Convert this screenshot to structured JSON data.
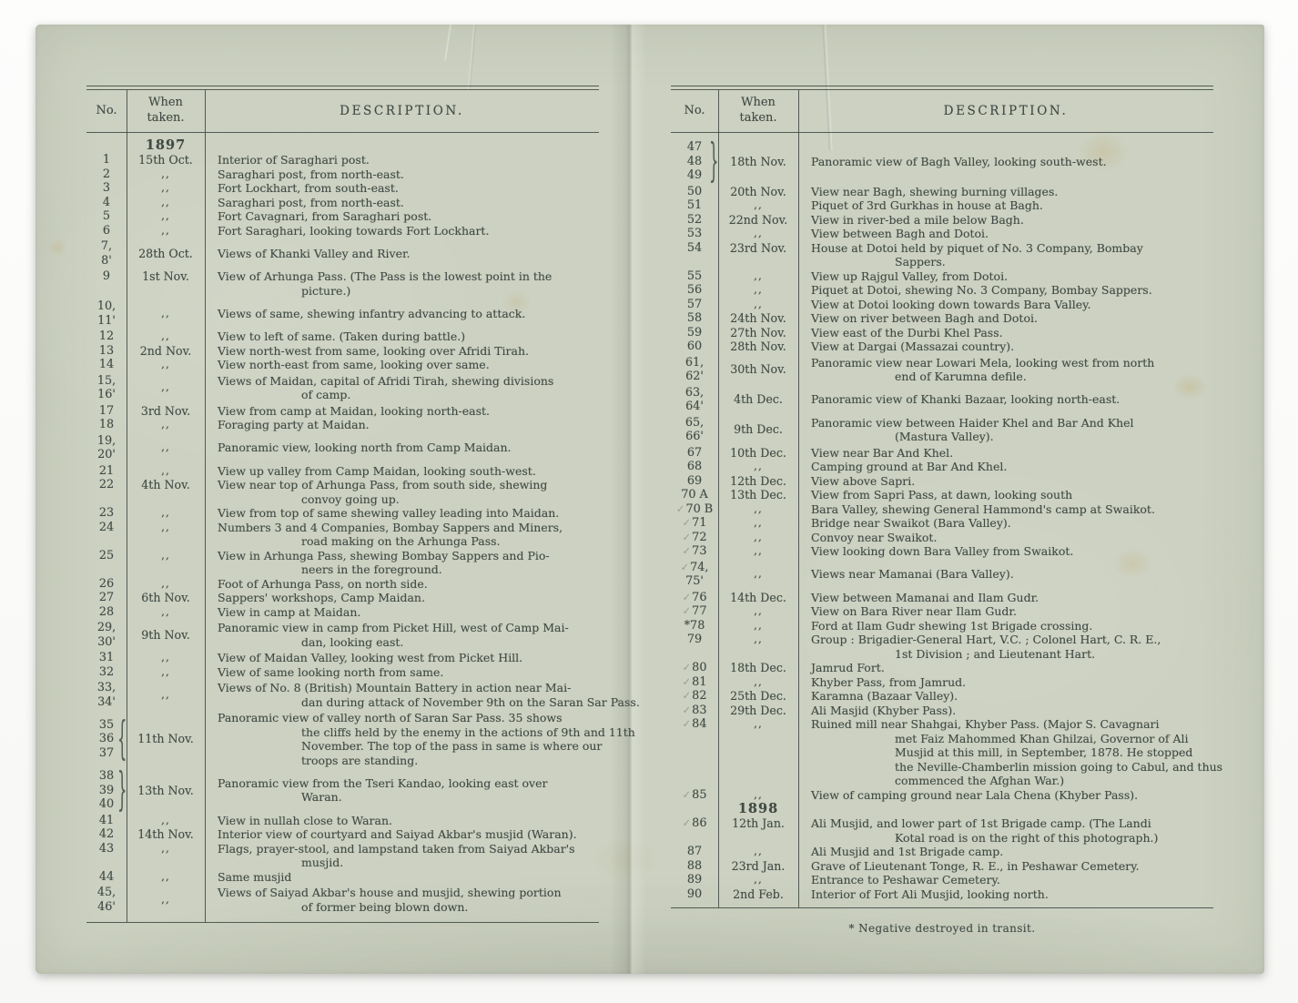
{
  "colors": {
    "paper": "#ccd1c1",
    "ink": "#414b45",
    "check_pencil": "#96a092"
  },
  "pages": [
    {
      "side": "left",
      "header": {
        "no": "No.",
        "when": "When\ntaken.",
        "desc": "DESCRIPTION."
      },
      "rows": [
        {
          "type": "year",
          "text": "1897"
        },
        {
          "no": [
            "1"
          ],
          "when": "15th Oct.",
          "desc": [
            "Interior of Saraghari post."
          ]
        },
        {
          "no": [
            "2"
          ],
          "when": ",,",
          "desc": [
            "Saraghari post, from north-east."
          ]
        },
        {
          "no": [
            "3"
          ],
          "when": ",,",
          "desc": [
            "Fort Lockhart, from south-east."
          ]
        },
        {
          "no": [
            "4"
          ],
          "when": ",,",
          "desc": [
            "Saraghari post, from north-east."
          ]
        },
        {
          "no": [
            "5"
          ],
          "when": ",,",
          "desc": [
            "Fort Cavagnari, from Saraghari post."
          ]
        },
        {
          "no": [
            "6"
          ],
          "when": ",,",
          "desc": [
            "Fort Saraghari, looking towards Fort Lockhart."
          ]
        },
        {
          "no": [
            "7,",
            "8'"
          ],
          "when": "28th Oct.",
          "desc": [
            "Views of Khanki Valley and River."
          ]
        },
        {
          "no": [
            "9"
          ],
          "when": "1st Nov.",
          "desc": [
            "View of Arhunga Pass.  (The Pass is the lowest point in the",
            "picture.)"
          ]
        },
        {
          "no": [
            "10,",
            "11'"
          ],
          "when": ",,",
          "desc": [
            "Views of same, shewing infantry advancing to attack."
          ]
        },
        {
          "no": [
            "12"
          ],
          "when": ",,",
          "desc": [
            "View to left of same.  (Taken during battle.)"
          ]
        },
        {
          "no": [
            "13"
          ],
          "when": "2nd Nov.",
          "desc": [
            "View north-west from same, looking over Afridi Tirah."
          ]
        },
        {
          "no": [
            "14"
          ],
          "when": ",,",
          "desc": [
            "View north-east from same, looking over same."
          ]
        },
        {
          "no": [
            "15,",
            "16'"
          ],
          "when": ",,",
          "desc": [
            "Views of Maidan, capital of Afridi Tirah, shewing divisions",
            "of camp."
          ]
        },
        {
          "no": [
            "17"
          ],
          "when": "3rd Nov.",
          "desc": [
            "View from camp at Maidan, looking north-east."
          ]
        },
        {
          "no": [
            "18"
          ],
          "when": ",,",
          "desc": [
            "Foraging party at Maidan."
          ]
        },
        {
          "no": [
            "19,",
            "20'"
          ],
          "when": ",,",
          "desc": [
            "Panoramic view, looking north from Camp Maidan."
          ]
        },
        {
          "no": [
            "21"
          ],
          "when": ",,",
          "desc": [
            "View up valley from Camp Maidan, looking south-west."
          ]
        },
        {
          "no": [
            "22"
          ],
          "when": "4th Nov.",
          "desc": [
            "View near top of Arhunga Pass, from south side, shewing",
            "convoy going up."
          ]
        },
        {
          "no": [
            "23"
          ],
          "when": ",,",
          "desc": [
            "View from top of same shewing valley leading into Maidan."
          ]
        },
        {
          "no": [
            "24"
          ],
          "when": ",,",
          "desc": [
            "Numbers 3 and 4 Companies, Bombay Sappers and Miners,",
            "road making on the Arhunga Pass."
          ]
        },
        {
          "no": [
            "25"
          ],
          "when": ",,",
          "desc": [
            "View in Arhunga Pass, shewing Bombay Sappers and Pio-",
            "neers in the foreground."
          ]
        },
        {
          "no": [
            "26"
          ],
          "when": ",,",
          "desc": [
            "Foot of Arhunga Pass, on north side."
          ]
        },
        {
          "no": [
            "27"
          ],
          "when": "6th Nov.",
          "desc": [
            "Sappers' workshops, Camp Maidan."
          ]
        },
        {
          "no": [
            "28"
          ],
          "when": ",,",
          "desc": [
            "View in camp at Maidan."
          ]
        },
        {
          "no": [
            "29,",
            "30'"
          ],
          "when": "9th Nov.",
          "desc": [
            "Panoramic view in camp from Picket Hill, west of Camp Mai-",
            "dan, looking east."
          ]
        },
        {
          "no": [
            "31"
          ],
          "when": ",,",
          "desc": [
            "View of Maidan Valley, looking west from Picket Hill."
          ]
        },
        {
          "no": [
            "32"
          ],
          "when": ",,",
          "desc": [
            "View of same looking north from same."
          ]
        },
        {
          "no": [
            "33,",
            "34'"
          ],
          "when": ",,",
          "desc": [
            "Views of No. 8 (British) Mountain Battery in action near Mai-",
            "dan during attack of November 9th on the Saran Sar Pass."
          ]
        },
        {
          "no": [
            "35",
            "36",
            "37"
          ],
          "brace": "{",
          "when": "11th Nov.",
          "desc": [
            "Panoramic view of valley north of Saran Sar Pass.  35 shows",
            "the cliffs held by the enemy in the actions of 9th and 11th",
            "November.  The top of the pass in same is where our",
            "troops are standing."
          ]
        },
        {
          "no": [
            "38",
            "39",
            "40"
          ],
          "brace": "}",
          "when": "13th Nov.",
          "desc": [
            "Panoramic view from the Tseri Kandao, looking east over",
            "Waran."
          ]
        },
        {
          "no": [
            "41"
          ],
          "when": ",,",
          "desc": [
            "View in nullah close to Waran."
          ]
        },
        {
          "no": [
            "42"
          ],
          "when": "14th Nov.",
          "desc": [
            "Interior view of courtyard and Saiyad Akbar's musjid (Waran)."
          ]
        },
        {
          "no": [
            "43"
          ],
          "when": ",,",
          "desc": [
            "Flags, prayer-stool, and lampstand taken from Saiyad Akbar's",
            "musjid."
          ]
        },
        {
          "no": [
            "44"
          ],
          "when": ",,",
          "desc": [
            "Same musjid"
          ]
        },
        {
          "no": [
            "45,",
            "46'"
          ],
          "when": ",,",
          "desc": [
            "Views of Saiyad Akbar's house and musjid, shewing portion",
            "of former being blown down."
          ]
        }
      ]
    },
    {
      "side": "right",
      "header": {
        "no": "No.",
        "when": "When\ntaken.",
        "desc": "DESCRIPTION."
      },
      "footnote": "* Negative destroyed in transit.",
      "rows": [
        {
          "no": [
            "47",
            "48",
            "49"
          ],
          "brace": "}",
          "when": "18th Nov.",
          "desc": [
            "Panoramic view of Bagh Valley, looking south-west."
          ]
        },
        {
          "no": [
            "50"
          ],
          "when": "20th Nov.",
          "desc": [
            "View near Bagh, shewing burning villages."
          ]
        },
        {
          "no": [
            "51"
          ],
          "when": ",,",
          "desc": [
            "Piquet of 3rd Gurkhas in house at Bagh."
          ]
        },
        {
          "no": [
            "52"
          ],
          "when": "22nd Nov.",
          "desc": [
            "View in river-bed a mile below Bagh."
          ]
        },
        {
          "no": [
            "53"
          ],
          "when": ",,",
          "desc": [
            "View between Bagh and Dotoi."
          ]
        },
        {
          "no": [
            "54"
          ],
          "when": "23rd Nov.",
          "desc": [
            "House at Dotoi held by piquet of No. 3 Company, Bombay",
            "Sappers."
          ]
        },
        {
          "no": [
            "55"
          ],
          "when": ",,",
          "desc": [
            "View up Rajgul Valley, from Dotoi."
          ]
        },
        {
          "no": [
            "56"
          ],
          "when": ",,",
          "desc": [
            "Piquet at Dotoi, shewing No. 3 Company, Bombay Sappers."
          ]
        },
        {
          "no": [
            "57"
          ],
          "when": ",,",
          "desc": [
            "View at Dotoi looking down towards Bara Valley."
          ]
        },
        {
          "no": [
            "58"
          ],
          "when": "24th Nov.",
          "desc": [
            "View on river between Bagh and Dotoi."
          ]
        },
        {
          "no": [
            "59"
          ],
          "when": "27th Nov.",
          "desc": [
            "View east of the Durbi Khel Pass."
          ]
        },
        {
          "no": [
            "60"
          ],
          "when": "28th Nov.",
          "desc": [
            "View at Dargai (Massazai country)."
          ]
        },
        {
          "no": [
            "61,",
            "62'"
          ],
          "when": "30th Nov.",
          "desc": [
            "Panoramic view near Lowari Mela, looking west from north",
            "end of Karumna defile."
          ]
        },
        {
          "no": [
            "63,",
            "64'"
          ],
          "when": "4th Dec.",
          "desc": [
            "Panoramic view of Khanki Bazaar, looking north-east."
          ]
        },
        {
          "no": [
            "65,",
            "66'"
          ],
          "when": "9th Dec.",
          "desc": [
            "Panoramic view between Haider Khel and Bar And Khel",
            "(Mastura Valley)."
          ]
        },
        {
          "no": [
            "67"
          ],
          "when": "10th Dec.",
          "desc": [
            "View near Bar And Khel."
          ]
        },
        {
          "no": [
            "68"
          ],
          "when": ",,",
          "desc": [
            "Camping ground at Bar And Khel."
          ]
        },
        {
          "no": [
            "69"
          ],
          "when": "12th Dec.",
          "desc": [
            "View above Sapri."
          ]
        },
        {
          "no": [
            "70 A"
          ],
          "when": "13th Dec.",
          "desc": [
            "View from Sapri Pass, at dawn, looking south"
          ]
        },
        {
          "no": [
            "✓70 B"
          ],
          "when": ",,",
          "desc": [
            "Bara Valley, shewing General Hammond's camp at Swaikot."
          ]
        },
        {
          "no": [
            "✓71"
          ],
          "when": ",,",
          "desc": [
            "Bridge near Swaikot (Bara Valley)."
          ]
        },
        {
          "no": [
            "✓72"
          ],
          "when": ",,",
          "desc": [
            "Convoy near Swaikot."
          ]
        },
        {
          "no": [
            "✓73"
          ],
          "when": ",,",
          "desc": [
            "View looking down Bara Valley from Swaikot."
          ]
        },
        {
          "no": [
            "✓74,",
            "75'"
          ],
          "when": ",,",
          "desc": [
            "Views near Mamanai (Bara Valley)."
          ]
        },
        {
          "no": [
            "✓76"
          ],
          "when": "14th Dec.",
          "desc": [
            "View between Mamanai and Ilam Gudr."
          ]
        },
        {
          "no": [
            "✓77"
          ],
          "when": ",,",
          "desc": [
            "View on Bara River near Ilam Gudr."
          ]
        },
        {
          "no": [
            "*78"
          ],
          "when": ",,",
          "desc": [
            "Ford at Ilam Gudr shewing 1st Brigade crossing."
          ]
        },
        {
          "no": [
            "79"
          ],
          "when": ",,",
          "desc": [
            "Group : Brigadier-General Hart, V.C. ; Colonel Hart, C. R. E.,",
            "1st Division ; and Lieutenant Hart."
          ]
        },
        {
          "no": [
            "✓80"
          ],
          "when": "18th Dec.",
          "desc": [
            "Jamrud Fort."
          ]
        },
        {
          "no": [
            "✓81"
          ],
          "when": ",,",
          "desc": [
            "Khyber Pass, from Jamrud."
          ]
        },
        {
          "no": [
            "✓82"
          ],
          "when": "25th Dec.",
          "desc": [
            "Karamna (Bazaar Valley)."
          ]
        },
        {
          "no": [
            "✓83"
          ],
          "when": "29th Dec.",
          "desc": [
            "Ali Masjid (Khyber Pass)."
          ]
        },
        {
          "no": [
            "✓84"
          ],
          "when": ",,",
          "desc": [
            "Ruined mill near Shahgai, Khyber Pass.  (Major S. Cavagnari",
            "met Faiz Mahommed Khan Ghilzai, Governor of Ali",
            "Musjid at this mill, in September, 1878.  He stopped",
            "the Neville-Chamberlin mission going to Cabul, and thus",
            "commenced the Afghan War.)"
          ]
        },
        {
          "no": [
            "✓85"
          ],
          "when": ",,",
          "desc": [
            "View of camping ground near Lala Chena (Khyber Pass)."
          ]
        },
        {
          "type": "year",
          "text": "1898"
        },
        {
          "no": [
            "✓86"
          ],
          "when": "12th Jan.",
          "desc": [
            "Ali Musjid, and lower part of 1st Brigade camp.  (The Landi",
            "Kotal road is on the right of this photograph.)"
          ]
        },
        {
          "no": [
            "87"
          ],
          "when": ",,",
          "desc": [
            "Ali Musjid and 1st Brigade camp."
          ]
        },
        {
          "no": [
            "88"
          ],
          "when": "23rd Jan.",
          "desc": [
            "Grave of Lieutenant Tonge, R. E., in Peshawar Cemetery."
          ]
        },
        {
          "no": [
            "89"
          ],
          "when": ",,",
          "desc": [
            "Entrance to Peshawar Cemetery."
          ]
        },
        {
          "no": [
            "90"
          ],
          "when": "2nd Feb.",
          "desc": [
            "Interior of Fort Ali Musjid, looking north."
          ]
        }
      ]
    }
  ]
}
